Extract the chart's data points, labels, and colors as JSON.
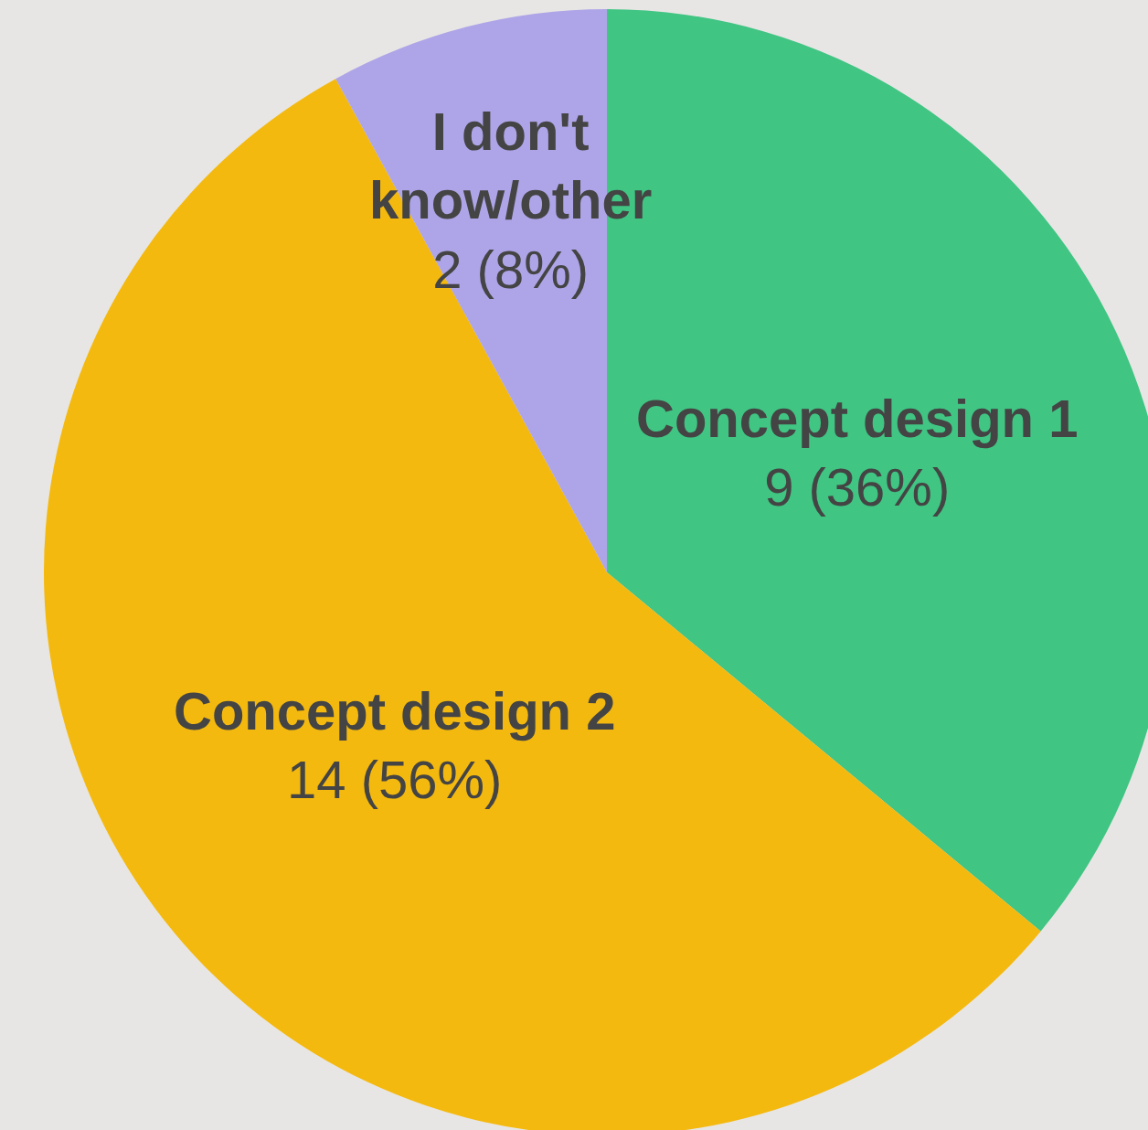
{
  "chart_data": {
    "type": "pie",
    "categories": [
      "Concept design 1",
      "Concept design 2",
      "I don't know/other"
    ],
    "values": [
      9,
      14,
      2
    ],
    "value_labels": [
      "9 (36%)",
      "14 (56%)",
      "2 (8%)"
    ],
    "colors": [
      "#40c583",
      "#f4b90f",
      "#aea5e8"
    ],
    "legend": false
  }
}
